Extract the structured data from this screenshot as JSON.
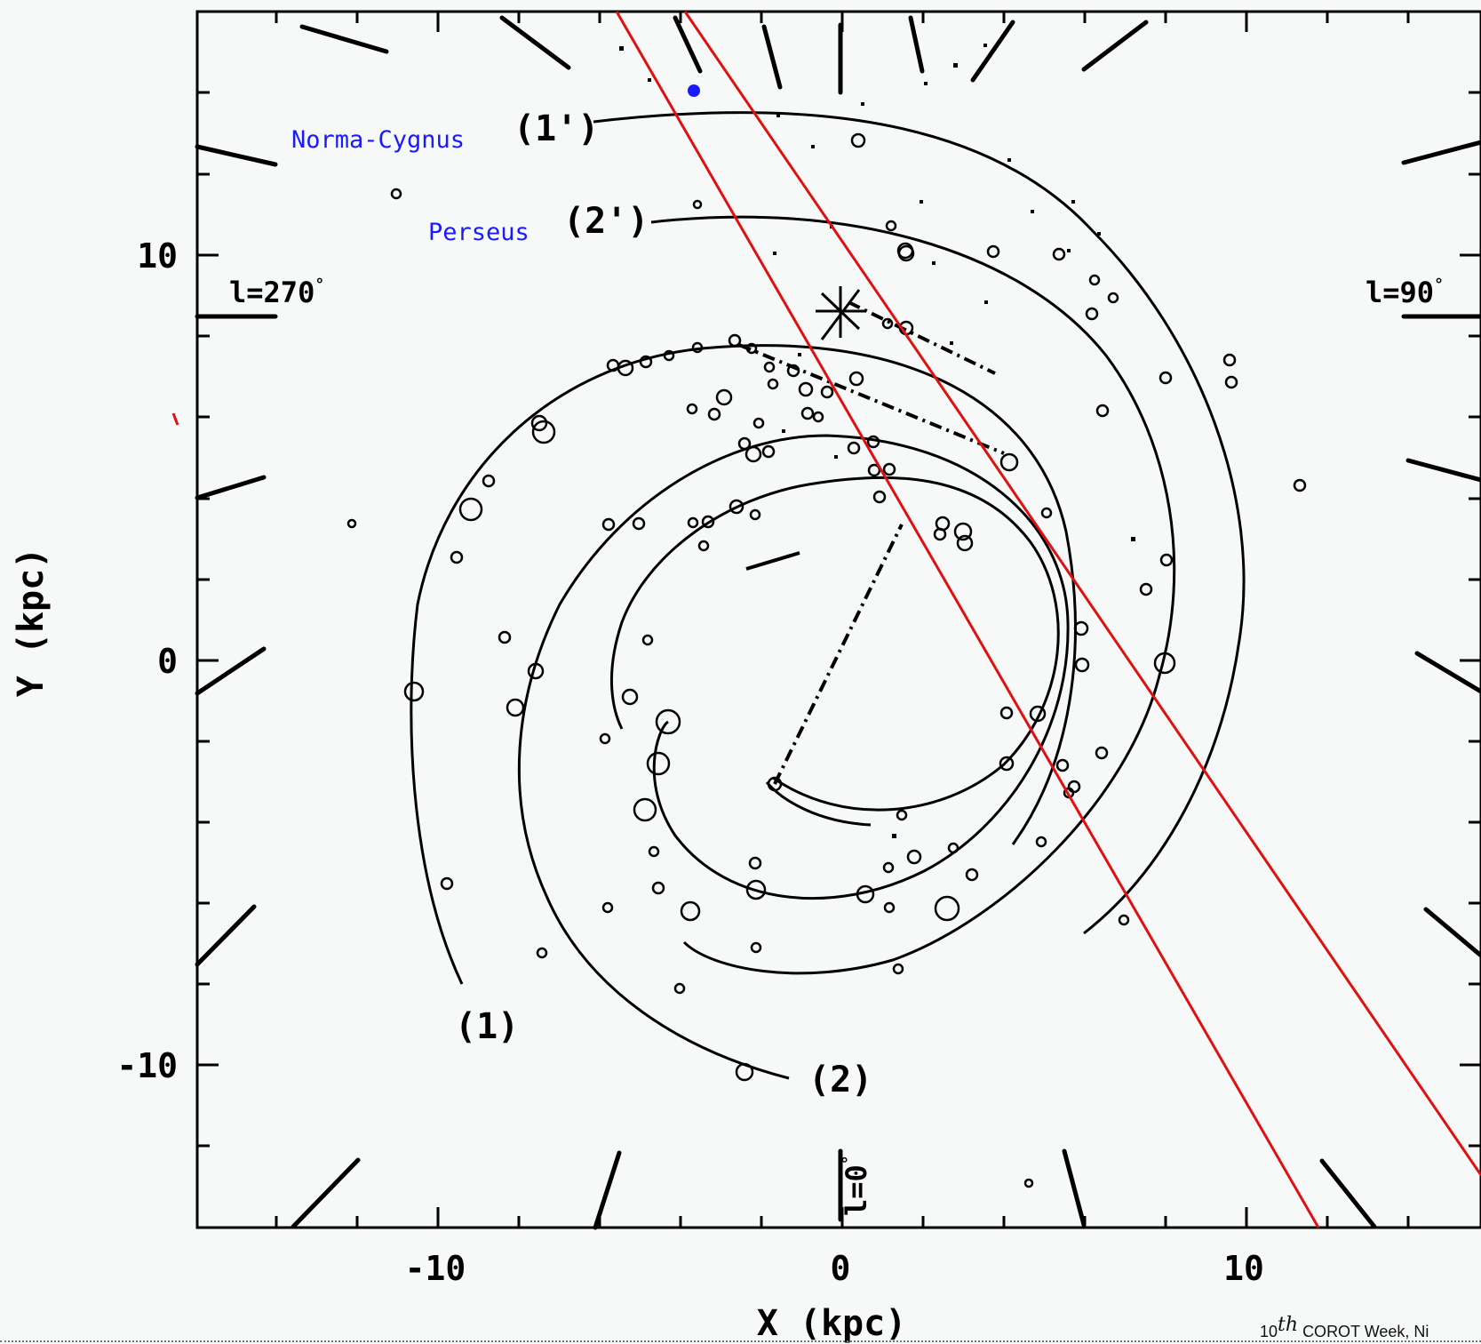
{
  "diagram": {
    "xlabel": "X (kpc)",
    "ylabel": "Y (kpc)",
    "x_ticks": [
      "-10",
      "0",
      "10"
    ],
    "y_ticks": [
      "10",
      "0",
      "-10"
    ],
    "longitude_labels": {
      "l270": "l=270",
      "l90": "l=90",
      "l0": "l=0",
      "degree_symbol": "°"
    },
    "arm_labels": [
      {
        "id": "1",
        "text": "(1)"
      },
      {
        "id": "1p",
        "text": "(1')"
      },
      {
        "id": "2",
        "text": "(2)"
      },
      {
        "id": "2p",
        "text": "(2')"
      }
    ],
    "arm_names": {
      "norma_cygnus": "Norma-Cygnus",
      "perseus": "Perseus"
    },
    "colors": {
      "arms": "#000000",
      "lines_of_sight": "#e01010",
      "names": "#1a1aff",
      "background": "#f6f9f7"
    },
    "marker": "blue-dot",
    "sun": "star-symbol"
  },
  "footer": {
    "superscript": "th",
    "prefix": "10",
    "text": "COROT Week, Ni"
  }
}
